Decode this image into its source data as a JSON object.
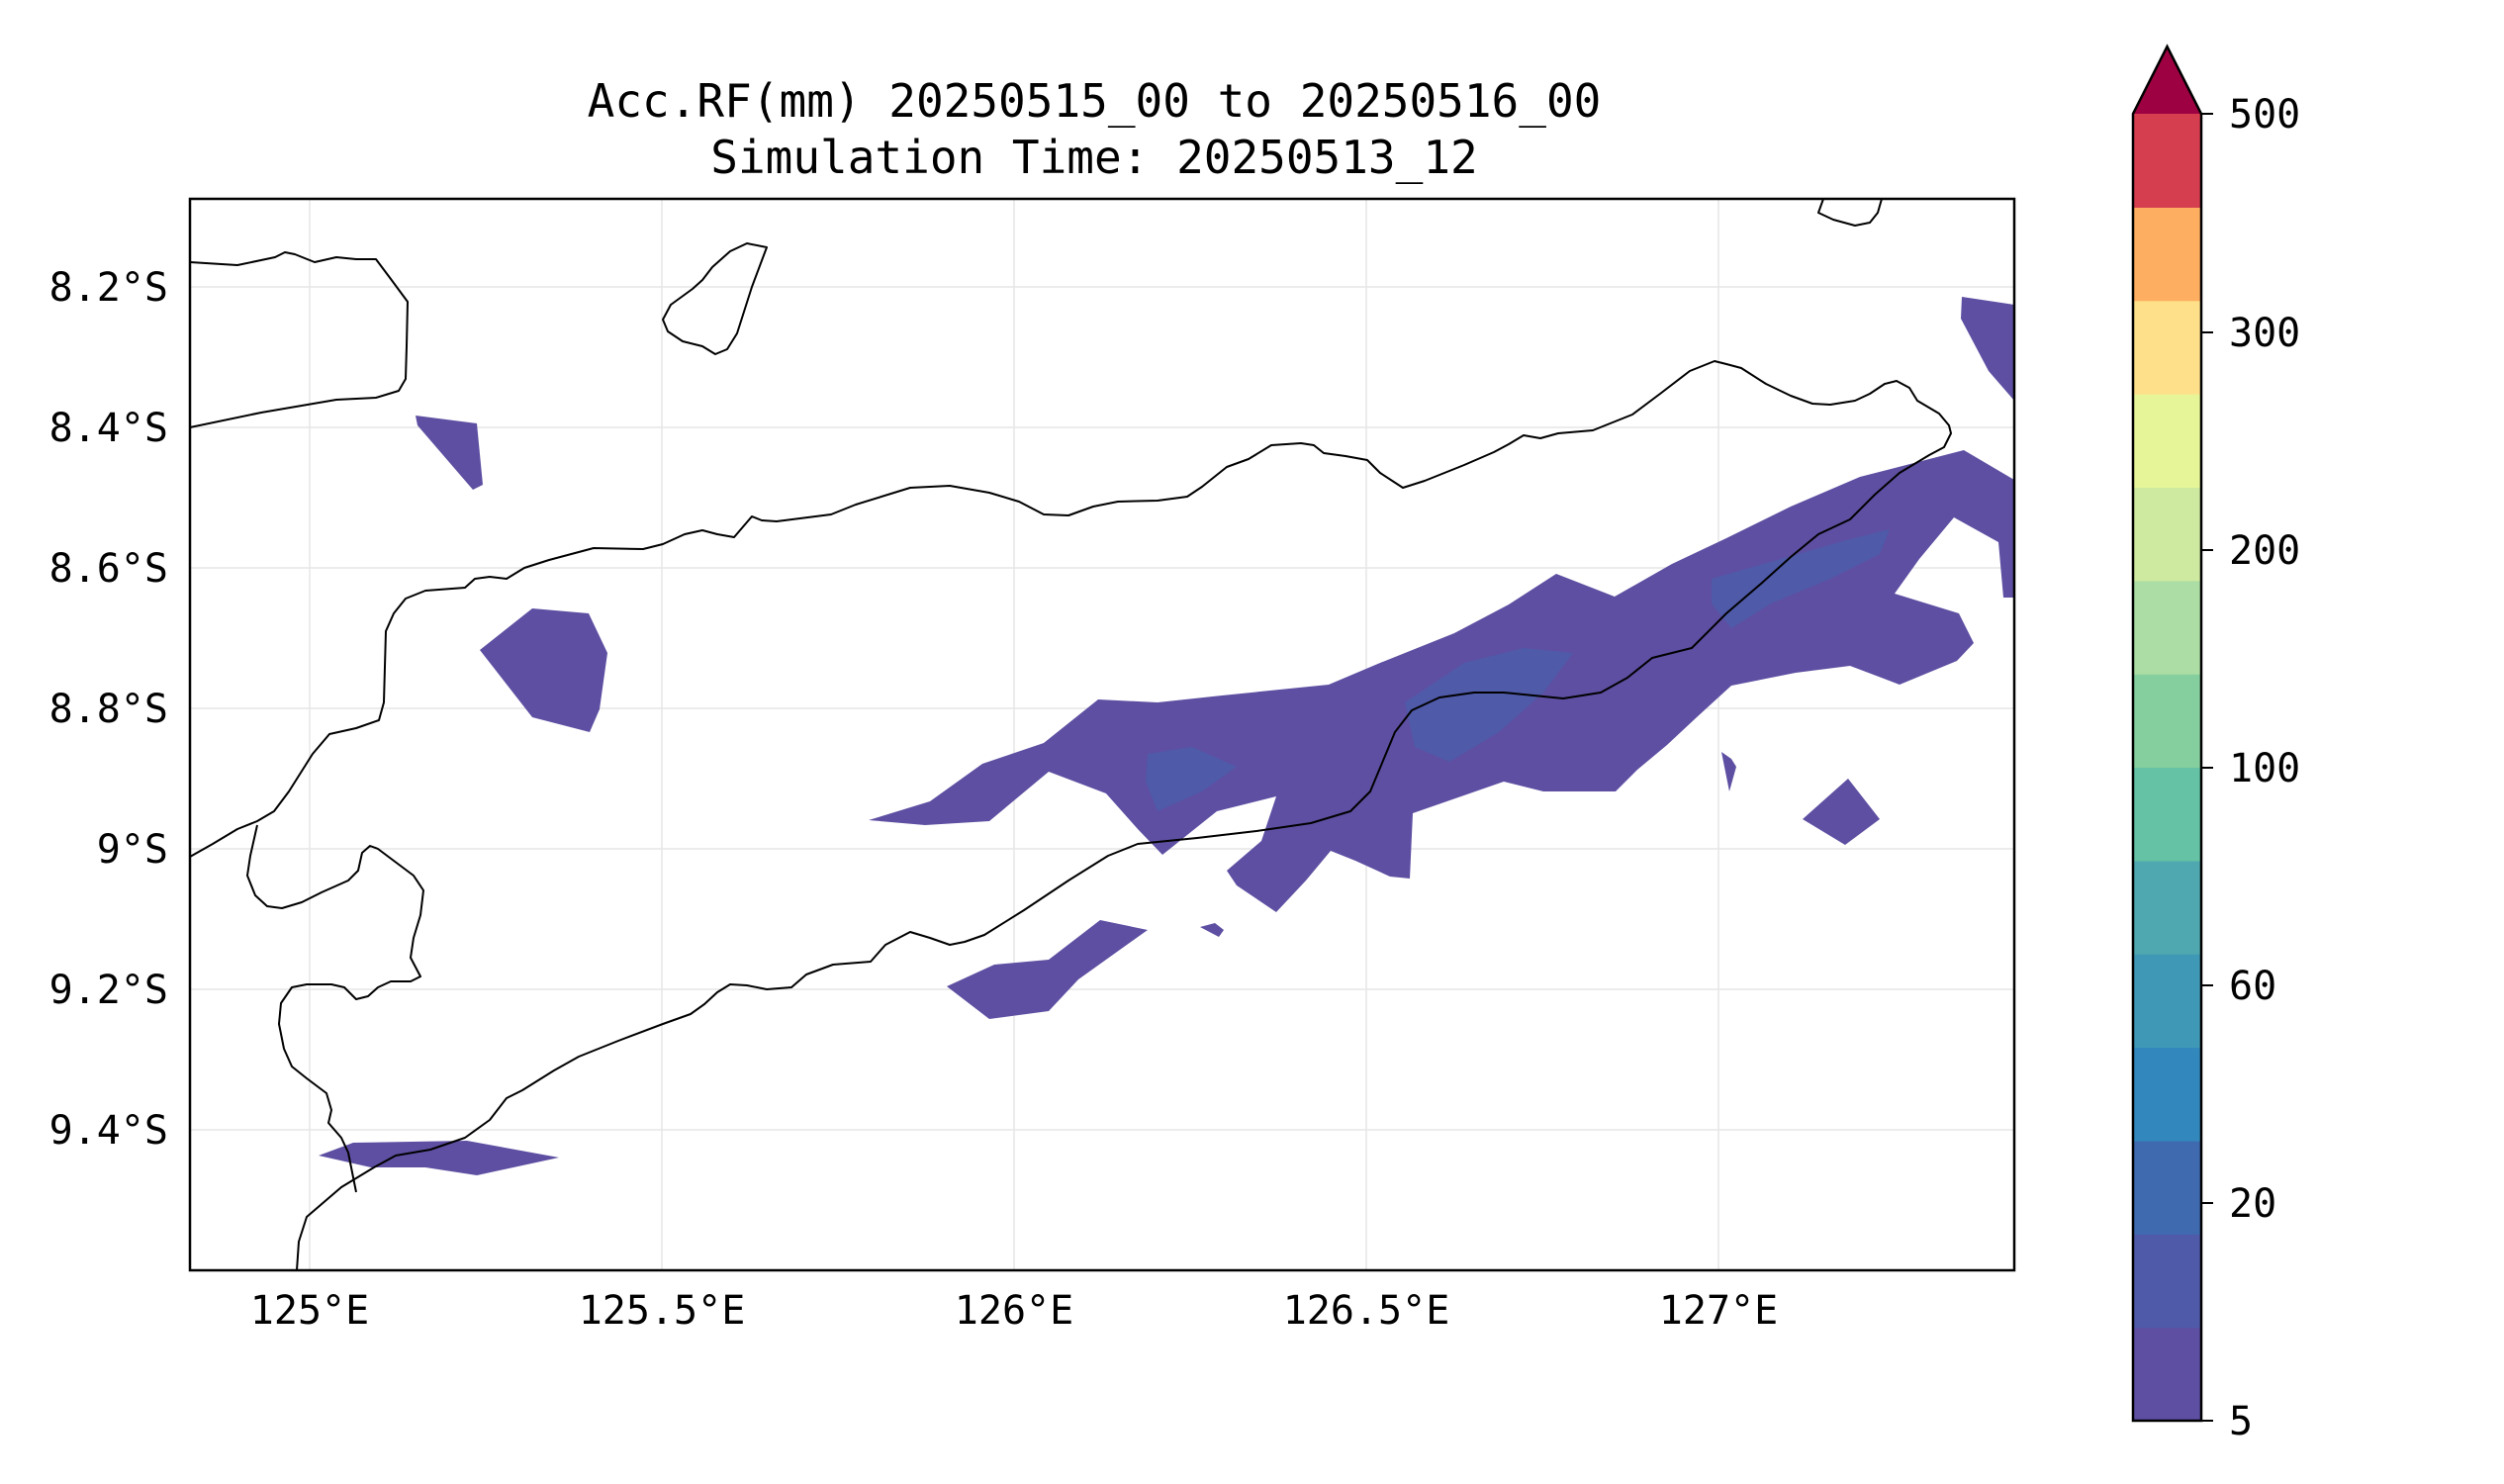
{
  "title": {
    "line1": "Acc.RF(mm) 20250515_00 to 20250516_00",
    "line2": "Simulation Time: 20250513_12"
  },
  "map": {
    "lon_ticks": [
      "125°E",
      "125.5°E",
      "126°E",
      "126.5°E",
      "127°E"
    ],
    "lat_ticks": [
      "8.2°S",
      "8.4°S",
      "8.6°S",
      "8.8°S",
      "9°S",
      "9.2°S",
      "9.4°S"
    ],
    "gridlines": true,
    "coastline_color": "#000000",
    "rain_color_5_20": "#5e4fa2"
  },
  "colorbar": {
    "labels": [
      "500",
      "300",
      "200",
      "100",
      "60",
      "20",
      "5"
    ],
    "extend": "max",
    "colors": [
      "#5e4fa2",
      "#4f5aa9",
      "#3f6ab0",
      "#3288bd",
      "#3f98b5",
      "#4fa8b0",
      "#66c2a5",
      "#85cf9f",
      "#abdda4",
      "#cdeaa0",
      "#e6f598",
      "#fee08b",
      "#fdae61",
      "#d53e4f",
      "#9e0142"
    ]
  }
}
